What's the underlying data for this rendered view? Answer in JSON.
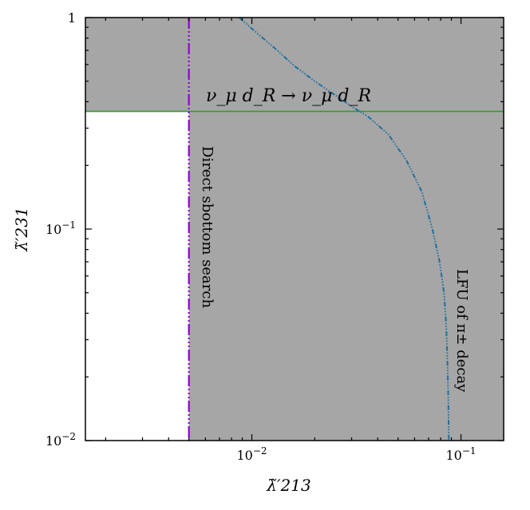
{
  "chart_data": {
    "type": "area",
    "title": "",
    "xlabel": "λ̃′213",
    "ylabel": "λ̃′231",
    "xscale": "log",
    "yscale": "log",
    "xlim": [
      0.0016,
      0.16
    ],
    "ylim": [
      0.01,
      1
    ],
    "x_ticks": [
      {
        "value": 0.01,
        "label": "10",
        "exp": "−2"
      },
      {
        "value": 0.1,
        "label": "10",
        "exp": "−1"
      }
    ],
    "y_ticks": [
      {
        "value": 0.01,
        "label": "10",
        "exp": "−2"
      },
      {
        "value": 0.1,
        "label": "10",
        "exp": "−1"
      },
      {
        "value": 1,
        "label": "1",
        "exp": ""
      }
    ],
    "grid": false,
    "colors": {
      "excluded_fill": "#a6a6a6",
      "sbottom_line": "#9400d3",
      "neutrino_line": "#2ca02c",
      "lfu_line": "#1f6f9f"
    },
    "constraints": [
      {
        "id": "sbottom",
        "label": "Direct sbottom search",
        "kind": "vertical",
        "x": 0.005
      },
      {
        "id": "neutrino",
        "label": "ν_μ d_R → ν_μ d_R",
        "kind": "horizontal",
        "y": 0.36
      },
      {
        "id": "lfu",
        "label": "LFU of π± decay",
        "kind": "curve",
        "x": [
          0.0087,
          0.0105,
          0.013,
          0.016,
          0.02,
          0.025,
          0.03,
          0.036,
          0.045,
          0.055,
          0.065,
          0.073,
          0.079,
          0.083,
          0.085,
          0.086,
          0.087,
          0.0875
        ],
        "y": [
          1.0,
          0.85,
          0.71,
          0.59,
          0.5,
          0.43,
          0.38,
          0.34,
          0.28,
          0.21,
          0.15,
          0.1,
          0.07,
          0.05,
          0.035,
          0.025,
          0.016,
          0.01
        ]
      }
    ]
  }
}
